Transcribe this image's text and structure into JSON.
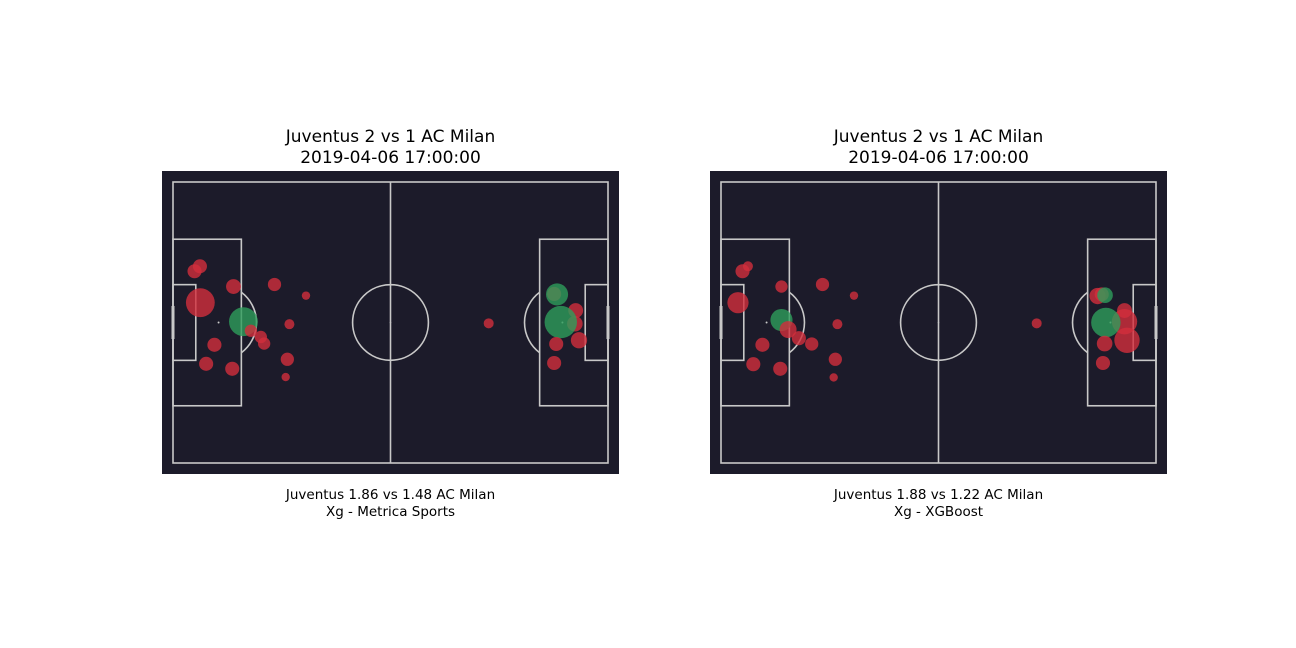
{
  "colors": {
    "pitch_background": "#1c1b2a",
    "pitch_lines": "#c8c8c8",
    "goal_marker": "#2e9e5b",
    "no_goal_marker": "#d22e3c"
  },
  "chart_data": [
    {
      "type": "scatter",
      "title": "Juventus 2 vs 1 AC Milan",
      "subtitle": "2019-04-06 17:00:00",
      "caption_line1": "Juventus 1.86 vs 1.48 AC Milan",
      "caption_line2": "Xg - Metrica Sports",
      "xlim": [
        0,
        105
      ],
      "ylim": [
        0,
        68
      ],
      "grid": false,
      "shots": [
        {
          "x": 6.6,
          "y": 38.8,
          "xg": 0.38,
          "goal": false
        },
        {
          "x": 17.0,
          "y": 34.2,
          "xg": 0.38,
          "goal": true
        },
        {
          "x": 5.2,
          "y": 46.4,
          "xg": 0.06,
          "goal": false
        },
        {
          "x": 6.5,
          "y": 47.6,
          "xg": 0.06,
          "goal": false
        },
        {
          "x": 14.6,
          "y": 42.7,
          "xg": 0.07,
          "goal": false
        },
        {
          "x": 24.5,
          "y": 43.2,
          "xg": 0.05,
          "goal": false
        },
        {
          "x": 32.1,
          "y": 40.5,
          "xg": 0.01,
          "goal": false
        },
        {
          "x": 28.1,
          "y": 33.6,
          "xg": 0.02,
          "goal": false
        },
        {
          "x": 18.8,
          "y": 32.0,
          "xg": 0.04,
          "goal": false
        },
        {
          "x": 21.2,
          "y": 30.5,
          "xg": 0.04,
          "goal": false
        },
        {
          "x": 10.0,
          "y": 28.6,
          "xg": 0.06,
          "goal": false
        },
        {
          "x": 22.0,
          "y": 28.9,
          "xg": 0.04,
          "goal": false
        },
        {
          "x": 27.6,
          "y": 25.1,
          "xg": 0.05,
          "goal": false
        },
        {
          "x": 8.0,
          "y": 24.0,
          "xg": 0.06,
          "goal": false
        },
        {
          "x": 14.3,
          "y": 22.8,
          "xg": 0.06,
          "goal": false
        },
        {
          "x": 27.2,
          "y": 20.8,
          "xg": 0.01,
          "goal": false
        },
        {
          "x": 76.2,
          "y": 33.8,
          "xg": 0.02,
          "goal": false
        },
        {
          "x": 92.0,
          "y": 40.9,
          "xg": 0.06,
          "goal": false
        },
        {
          "x": 92.7,
          "y": 40.8,
          "xg": 0.2,
          "goal": true
        },
        {
          "x": 97.2,
          "y": 36.9,
          "xg": 0.07,
          "goal": false
        },
        {
          "x": 97.0,
          "y": 33.7,
          "xg": 0.08,
          "goal": false
        },
        {
          "x": 93.6,
          "y": 34.1,
          "xg": 0.5,
          "goal": true
        },
        {
          "x": 98.0,
          "y": 29.7,
          "xg": 0.09,
          "goal": false
        },
        {
          "x": 92.5,
          "y": 28.8,
          "xg": 0.06,
          "goal": false
        },
        {
          "x": 92.0,
          "y": 24.2,
          "xg": 0.06,
          "goal": false
        }
      ]
    },
    {
      "type": "scatter",
      "title": "Juventus 2 vs 1 AC Milan",
      "subtitle": "2019-04-06 17:00:00",
      "caption_line1": "Juventus 1.88 vs 1.22 AC Milan",
      "caption_line2": "Xg - XGBoost",
      "xlim": [
        0,
        105
      ],
      "ylim": [
        0,
        68
      ],
      "grid": false,
      "shots": [
        {
          "x": 4.1,
          "y": 38.8,
          "xg": 0.18,
          "goal": false
        },
        {
          "x": 14.6,
          "y": 34.6,
          "xg": 0.2,
          "goal": true
        },
        {
          "x": 5.2,
          "y": 46.4,
          "xg": 0.06,
          "goal": false
        },
        {
          "x": 6.5,
          "y": 47.6,
          "xg": 0.02,
          "goal": false
        },
        {
          "x": 14.6,
          "y": 42.7,
          "xg": 0.04,
          "goal": false
        },
        {
          "x": 24.5,
          "y": 43.2,
          "xg": 0.05,
          "goal": false
        },
        {
          "x": 32.1,
          "y": 40.5,
          "xg": 0.01,
          "goal": false
        },
        {
          "x": 28.1,
          "y": 33.6,
          "xg": 0.02,
          "goal": false
        },
        {
          "x": 16.2,
          "y": 32.3,
          "xg": 0.1,
          "goal": false
        },
        {
          "x": 18.8,
          "y": 30.2,
          "xg": 0.06,
          "goal": false
        },
        {
          "x": 10.0,
          "y": 28.6,
          "xg": 0.06,
          "goal": false
        },
        {
          "x": 21.9,
          "y": 28.8,
          "xg": 0.05,
          "goal": false
        },
        {
          "x": 27.6,
          "y": 25.1,
          "xg": 0.05,
          "goal": false
        },
        {
          "x": 7.8,
          "y": 23.9,
          "xg": 0.06,
          "goal": false
        },
        {
          "x": 14.3,
          "y": 22.8,
          "xg": 0.06,
          "goal": false
        },
        {
          "x": 27.2,
          "y": 20.7,
          "xg": 0.01,
          "goal": false
        },
        {
          "x": 76.2,
          "y": 33.8,
          "xg": 0.02,
          "goal": false
        },
        {
          "x": 90.9,
          "y": 40.4,
          "xg": 0.09,
          "goal": false
        },
        {
          "x": 91.9,
          "y": 40.8,
          "xg": 0.06,
          "goal": false
        },
        {
          "x": 92.7,
          "y": 40.6,
          "xg": 0.08,
          "goal": true
        },
        {
          "x": 97.4,
          "y": 36.9,
          "xg": 0.07,
          "goal": false
        },
        {
          "x": 97.4,
          "y": 34.2,
          "xg": 0.28,
          "goal": false
        },
        {
          "x": 92.9,
          "y": 34.0,
          "xg": 0.4,
          "goal": true
        },
        {
          "x": 98.0,
          "y": 29.7,
          "xg": 0.28,
          "goal": false
        },
        {
          "x": 92.6,
          "y": 28.9,
          "xg": 0.08,
          "goal": false
        },
        {
          "x": 92.2,
          "y": 24.2,
          "xg": 0.06,
          "goal": false
        }
      ]
    }
  ]
}
